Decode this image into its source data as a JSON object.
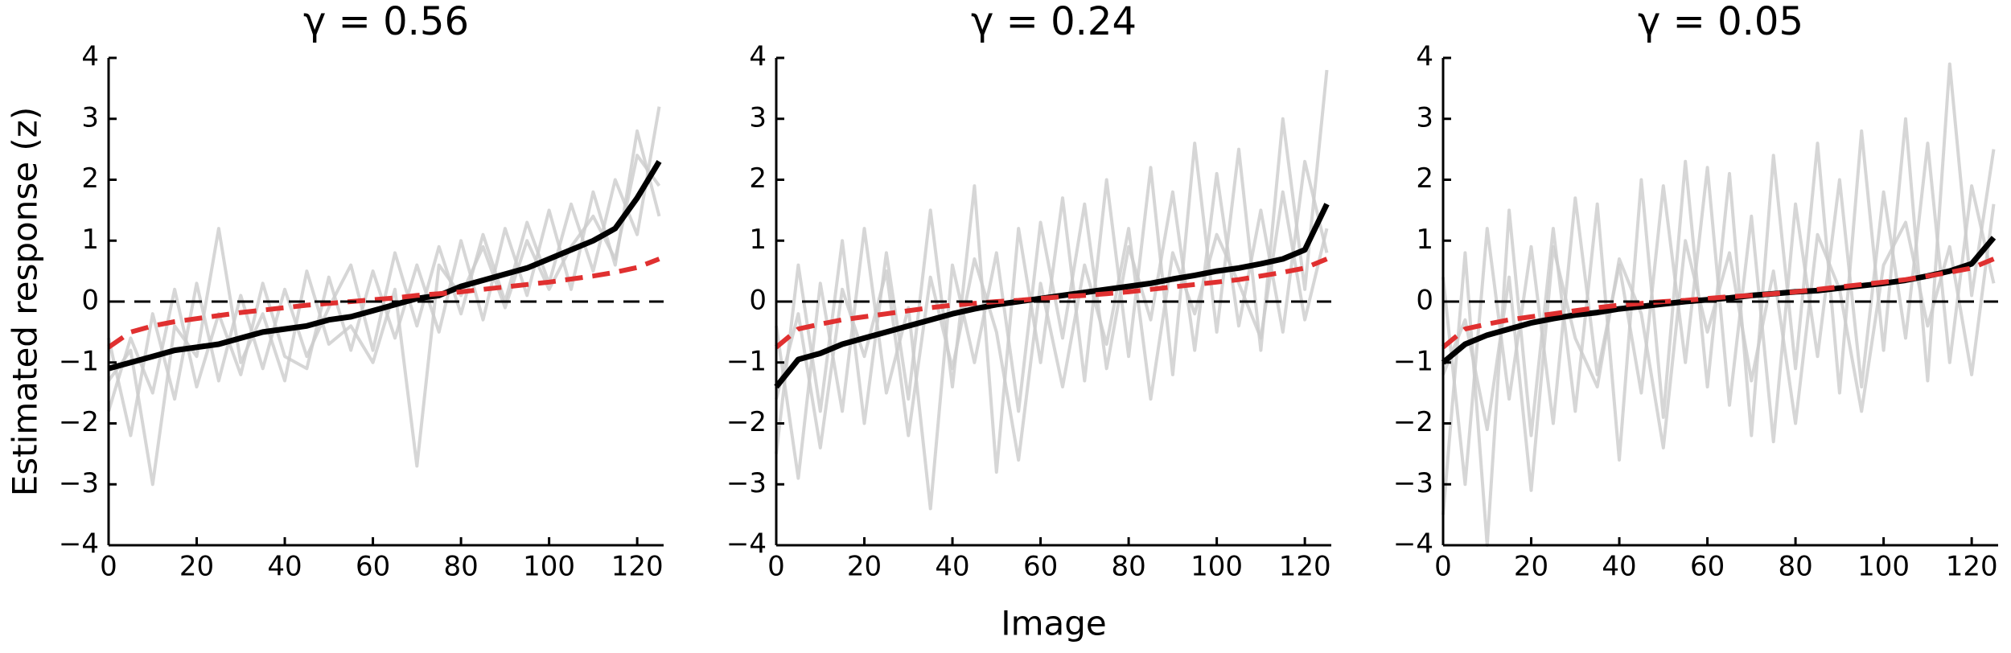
{
  "chart_data": [
    {
      "type": "line",
      "title": "γ = 0.56",
      "ylabel": "Estimated response (z)",
      "x": [
        0,
        5,
        10,
        15,
        20,
        25,
        30,
        35,
        40,
        45,
        50,
        55,
        60,
        65,
        70,
        75,
        80,
        85,
        90,
        95,
        100,
        105,
        110,
        115,
        120,
        125
      ],
      "xlim": [
        0,
        126
      ],
      "xticks": [
        0,
        20,
        40,
        60,
        80,
        100,
        120
      ],
      "ylim": [
        -4,
        4
      ],
      "yticks": [
        {
          "value": -4,
          "label": "−4"
        },
        {
          "value": -3,
          "label": "−3"
        },
        {
          "value": -2,
          "label": "−2"
        },
        {
          "value": -1,
          "label": "−1"
        },
        0,
        1,
        2,
        3,
        4
      ],
      "reference_line": 0,
      "series": [
        {
          "color": "#cccccc",
          "values": [
            -1.8,
            -0.6,
            -1.5,
            0.2,
            -1.4,
            -0.2,
            -1.2,
            0.3,
            -0.9,
            -1.1,
            0.4,
            -0.8,
            0.5,
            -0.6,
            0.6,
            -0.5,
            1.0,
            -0.3,
            1.2,
            0.1,
            1.5,
            0.2,
            1.8,
            0.6,
            2.8,
            1.4
          ]
        },
        {
          "color": "#cccccc",
          "values": [
            -0.6,
            -2.2,
            -0.2,
            -1.6,
            0.3,
            -1.3,
            0.1,
            -1.1,
            0.2,
            -0.9,
            -0.1,
            0.6,
            -0.8,
            0.8,
            -0.4,
            0.9,
            -0.2,
            1.1,
            0.0,
            1.3,
            0.3,
            1.6,
            0.5,
            2.0,
            1.1,
            3.2
          ]
        },
        {
          "color": "#cccccc",
          "values": [
            -1.3,
            -0.8,
            -3.0,
            -0.4,
            -0.9,
            1.2,
            -1.0,
            -0.2,
            -1.3,
            0.5,
            -0.7,
            -0.4,
            -1.0,
            0.2,
            -2.7,
            0.6,
            0.1,
            0.9,
            -0.1,
            1.0,
            0.2,
            0.9,
            1.4,
            0.7,
            2.4,
            1.9
          ]
        },
        {
          "color": "#000000",
          "values": [
            -1.1,
            -1.0,
            -0.9,
            -0.8,
            -0.75,
            -0.7,
            -0.6,
            -0.5,
            -0.45,
            -0.4,
            -0.3,
            -0.25,
            -0.15,
            -0.05,
            0.05,
            0.1,
            0.25,
            0.35,
            0.45,
            0.55,
            0.7,
            0.85,
            1.0,
            1.2,
            1.7,
            2.3
          ]
        },
        {
          "color": "#e03030",
          "dash": true,
          "values": [
            -0.75,
            -0.5,
            -0.4,
            -0.33,
            -0.28,
            -0.23,
            -0.18,
            -0.14,
            -0.1,
            -0.06,
            -0.03,
            0,
            0.03,
            0.06,
            0.1,
            0.13,
            0.16,
            0.2,
            0.24,
            0.28,
            0.32,
            0.37,
            0.42,
            0.48,
            0.56,
            0.7
          ]
        }
      ]
    },
    {
      "type": "line",
      "title": "γ = 0.24",
      "xlabel": "Image",
      "x": [
        0,
        5,
        10,
        15,
        20,
        25,
        30,
        35,
        40,
        45,
        50,
        55,
        60,
        65,
        70,
        75,
        80,
        85,
        90,
        95,
        100,
        105,
        110,
        115,
        120,
        125
      ],
      "xlim": [
        0,
        126
      ],
      "xticks": [
        0,
        20,
        40,
        60,
        80,
        100,
        120
      ],
      "ylim": [
        -4,
        4
      ],
      "yticks": [
        {
          "value": -4,
          "label": "−4"
        },
        {
          "value": -3,
          "label": "−3"
        },
        {
          "value": -2,
          "label": "−2"
        },
        {
          "value": -1,
          "label": "−1"
        },
        0,
        1,
        2,
        3,
        4
      ],
      "reference_line": 0,
      "series": [
        {
          "color": "#cccccc",
          "values": [
            -2.5,
            0.6,
            -1.8,
            1.0,
            -2.0,
            0.8,
            -1.6,
            1.5,
            -1.4,
            1.9,
            -2.8,
            1.2,
            -1.0,
            1.7,
            -1.3,
            2.0,
            -0.9,
            2.2,
            -1.2,
            2.6,
            -0.5,
            2.5,
            -0.8,
            3.0,
            0.2,
            3.8
          ]
        },
        {
          "color": "#cccccc",
          "values": [
            -0.4,
            -2.9,
            0.3,
            -1.8,
            1.2,
            -1.5,
            -0.1,
            -3.4,
            0.6,
            -1.0,
            0.8,
            -1.8,
            1.3,
            -0.6,
            1.6,
            -1.1,
            0.9,
            -0.3,
            1.8,
            -0.8,
            2.1,
            -0.4,
            1.5,
            -0.5,
            2.3,
            0.8
          ]
        },
        {
          "color": "#cccccc",
          "values": [
            -1.6,
            -0.2,
            -2.4,
            0.2,
            -0.9,
            0.5,
            -2.2,
            0.4,
            -1.1,
            0.7,
            -0.5,
            -2.6,
            0.3,
            -1.4,
            0.6,
            -0.7,
            1.2,
            -1.6,
            0.8,
            -0.2,
            1.1,
            0.3,
            -0.6,
            1.8,
            -0.3,
            1.2
          ]
        },
        {
          "color": "#000000",
          "values": [
            -1.4,
            -0.95,
            -0.85,
            -0.7,
            -0.6,
            -0.5,
            -0.4,
            -0.3,
            -0.2,
            -0.12,
            -0.05,
            0,
            0.05,
            0.1,
            0.15,
            0.2,
            0.25,
            0.3,
            0.37,
            0.43,
            0.5,
            0.55,
            0.62,
            0.7,
            0.85,
            1.6
          ]
        },
        {
          "color": "#e03030",
          "dash": true,
          "values": [
            -0.75,
            -0.45,
            -0.37,
            -0.3,
            -0.25,
            -0.2,
            -0.15,
            -0.1,
            -0.06,
            -0.03,
            0,
            0.02,
            0.05,
            0.08,
            0.1,
            0.13,
            0.16,
            0.2,
            0.24,
            0.28,
            0.32,
            0.36,
            0.42,
            0.48,
            0.55,
            0.7
          ]
        }
      ]
    },
    {
      "type": "line",
      "title": "γ = 0.05",
      "x": [
        0,
        5,
        10,
        15,
        20,
        25,
        30,
        35,
        40,
        45,
        50,
        55,
        60,
        65,
        70,
        75,
        80,
        85,
        90,
        95,
        100,
        105,
        110,
        115,
        120,
        125
      ],
      "xlim": [
        0,
        126
      ],
      "xticks": [
        0,
        20,
        40,
        60,
        80,
        100,
        120
      ],
      "ylim": [
        -4,
        4
      ],
      "yticks": [
        {
          "value": -4,
          "label": "−4"
        },
        {
          "value": -3,
          "label": "−3"
        },
        {
          "value": -2,
          "label": "−2"
        },
        {
          "value": -1,
          "label": "−1"
        },
        0,
        1,
        2,
        3,
        4
      ],
      "reference_line": 0,
      "series": [
        {
          "color": "#cccccc",
          "values": [
            -3.5,
            0.8,
            -4.0,
            1.5,
            -2.2,
            1.2,
            -1.8,
            1.6,
            -2.6,
            2.0,
            -1.9,
            2.3,
            -1.4,
            2.1,
            -2.2,
            2.4,
            -1.1,
            2.6,
            -1.5,
            2.8,
            -0.8,
            3.0,
            -1.3,
            3.9,
            0.1,
            2.5
          ]
        },
        {
          "color": "#cccccc",
          "values": [
            0.4,
            -3.0,
            1.2,
            -1.6,
            0.9,
            -2.0,
            1.7,
            -1.2,
            0.6,
            -1.5,
            1.9,
            -1.0,
            2.2,
            -1.7,
            1.4,
            -2.3,
            1.6,
            -0.9,
            2.0,
            -1.4,
            1.8,
            -0.6,
            2.6,
            -1.0,
            1.9,
            0.3
          ]
        },
        {
          "color": "#cccccc",
          "values": [
            -1.2,
            -0.3,
            -2.1,
            0.4,
            -3.1,
            0.9,
            -0.6,
            -1.4,
            0.7,
            -0.2,
            -2.4,
            1.0,
            -0.5,
            0.8,
            -1.3,
            0.5,
            -2.0,
            1.1,
            0.2,
            -1.8,
            0.6,
            1.3,
            -0.4,
            0.9,
            -1.2,
            1.6
          ]
        },
        {
          "color": "#000000",
          "values": [
            -1.0,
            -0.7,
            -0.55,
            -0.45,
            -0.35,
            -0.28,
            -0.22,
            -0.18,
            -0.12,
            -0.08,
            -0.04,
            0,
            0.03,
            0.06,
            0.1,
            0.13,
            0.16,
            0.18,
            0.22,
            0.26,
            0.3,
            0.35,
            0.42,
            0.5,
            0.62,
            1.05
          ]
        },
        {
          "color": "#e03030",
          "dash": true,
          "values": [
            -0.75,
            -0.45,
            -0.37,
            -0.3,
            -0.25,
            -0.2,
            -0.15,
            -0.1,
            -0.06,
            -0.03,
            0,
            0.02,
            0.05,
            0.08,
            0.1,
            0.13,
            0.16,
            0.2,
            0.24,
            0.28,
            0.32,
            0.36,
            0.42,
            0.48,
            0.55,
            0.7
          ]
        }
      ]
    }
  ]
}
